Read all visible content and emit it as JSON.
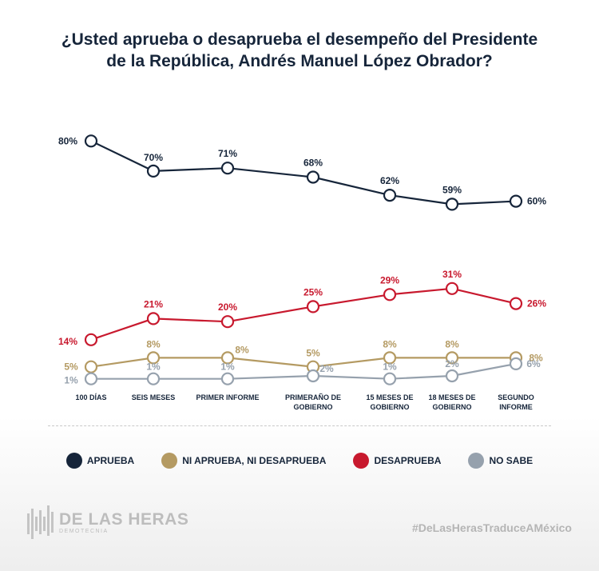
{
  "title_lines": [
    "¿Usted aprueba o desaprueba el desempeño del Presidente",
    "de la República, Andrés Manuel López Obrador?"
  ],
  "chart_data": {
    "type": "line",
    "title": "¿Usted aprueba o desaprueba el desempeño del Presidente de la República, Andrés Manuel López Obrador?",
    "categories": [
      [
        "100 DÍAS"
      ],
      [
        "SEIS MESES"
      ],
      [
        "PRIMER INFORME"
      ],
      [
        "PRIMERAÑO DE",
        "GOBIERNO"
      ],
      [
        "15 MESES DE",
        "GOBIERNO"
      ],
      [
        "18 MESES DE",
        "GOBIERNO"
      ],
      [
        "SEGUNDO",
        "INFORME"
      ]
    ],
    "series": [
      {
        "name": "APRUEBA",
        "color": "#16253a",
        "values": [
          80,
          70,
          71,
          68,
          62,
          59,
          60
        ],
        "labels": [
          "80%",
          "70%",
          "71%",
          "68%",
          "62%",
          "59%",
          "60%"
        ]
      },
      {
        "name": "NI APRUEBA, NI DESAPRUEBA",
        "color": "#b49a62",
        "values": [
          5,
          8,
          8,
          5,
          8,
          8,
          8
        ],
        "labels": [
          "5%",
          "8%",
          "8%",
          "5%",
          "8%",
          "8%",
          "8%"
        ]
      },
      {
        "name": "DESAPRUEBA",
        "color": "#c8192e",
        "values": [
          14,
          21,
          20,
          25,
          29,
          31,
          26
        ],
        "labels": [
          "14%",
          "21%",
          "20%",
          "25%",
          "29%",
          "31%",
          "26%"
        ]
      },
      {
        "name": "NO SABE",
        "color": "#96a1ad",
        "values": [
          1,
          1,
          1,
          2,
          1,
          2,
          6
        ],
        "labels": [
          "1%",
          "1%",
          "1%",
          "2%",
          "1%",
          "2%",
          "6%"
        ]
      }
    ],
    "legend_position": "bottom",
    "grid": false
  },
  "brand": {
    "name": "DE LAS HERAS",
    "sub": "DEMOTECNIA",
    "logo_color": "#c4c4c4"
  },
  "hashtag": "#DeLasHerasTraduceAMéxico"
}
